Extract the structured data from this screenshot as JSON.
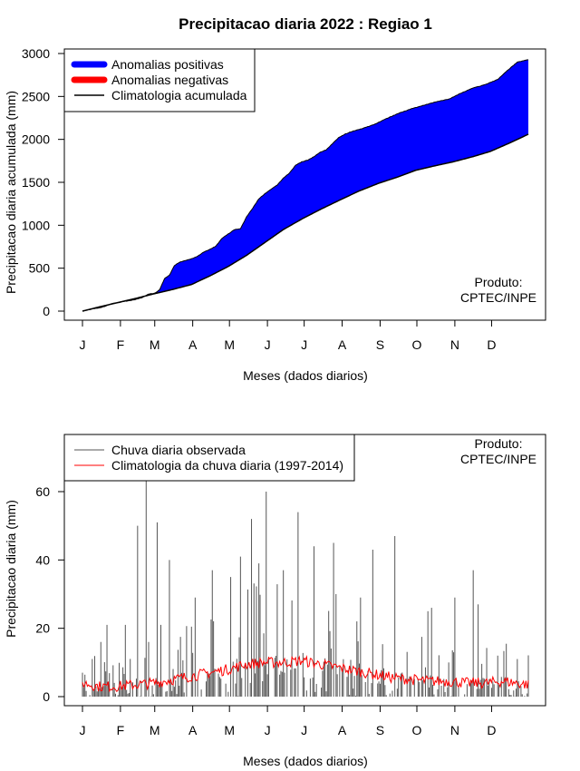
{
  "title": "Precipitacao diaria 2022 : Regiao 1",
  "product_label": [
    "Produto:",
    "CPTEC/INPE"
  ],
  "chart_data": [
    {
      "type": "area",
      "name": "accumulated",
      "ylabel": "Precipitacao diaria acumulada (mm)",
      "xlabel": "Meses (dados diarios)",
      "month_ticks": [
        "J",
        "F",
        "M",
        "A",
        "M",
        "J",
        "J",
        "A",
        "S",
        "O",
        "N",
        "D"
      ],
      "xlim": [
        1,
        365
      ],
      "ylim": [
        0,
        3000
      ],
      "yticks": [
        0,
        500,
        1000,
        1500,
        2000,
        2500,
        3000
      ],
      "legend": {
        "position": "top-left",
        "items": [
          {
            "label": "Anomalias positivas",
            "color": "#0000ff"
          },
          {
            "label": "Anomalias negativas",
            "color": "#ff0000"
          },
          {
            "label": "Climatologia acumulada",
            "color": "#000000"
          }
        ]
      },
      "observed_anchors": {
        "day": [
          1,
          10,
          15,
          20,
          25,
          30,
          35,
          40,
          45,
          50,
          55,
          60,
          64,
          68,
          72,
          76,
          80,
          85,
          90,
          95,
          100,
          105,
          110,
          115,
          120,
          125,
          130,
          135,
          140,
          145,
          150,
          155,
          160,
          165,
          170,
          175,
          180,
          185,
          190,
          195,
          200,
          205,
          210,
          215,
          220,
          225,
          230,
          240,
          250,
          260,
          270,
          280,
          290,
          300,
          310,
          320,
          330,
          340,
          350,
          356,
          365
        ],
        "value": [
          0,
          30,
          40,
          60,
          90,
          100,
          115,
          125,
          140,
          160,
          200,
          210,
          250,
          380,
          420,
          530,
          570,
          590,
          610,
          640,
          690,
          720,
          760,
          850,
          900,
          950,
          960,
          1100,
          1200,
          1310,
          1370,
          1420,
          1470,
          1550,
          1610,
          1700,
          1740,
          1760,
          1800,
          1850,
          1880,
          1950,
          2020,
          2060,
          2090,
          2110,
          2130,
          2180,
          2250,
          2310,
          2360,
          2400,
          2440,
          2470,
          2540,
          2600,
          2640,
          2700,
          2830,
          2900,
          2930
        ]
      },
      "climatology_anchors": {
        "day": [
          1,
          15,
          30,
          45,
          59,
          74,
          90,
          105,
          120,
          135,
          151,
          165,
          181,
          196,
          212,
          227,
          243,
          258,
          273,
          288,
          304,
          320,
          334,
          350,
          365
        ],
        "value": [
          0,
          50,
          100,
          150,
          200,
          250,
          310,
          410,
          520,
          650,
          810,
          950,
          1080,
          1190,
          1300,
          1400,
          1490,
          1560,
          1640,
          1690,
          1740,
          1800,
          1860,
          1960,
          2060
        ]
      }
    },
    {
      "type": "bar",
      "name": "daily",
      "ylabel": "Precipitacao diaria (mm)",
      "xlabel": "Meses (dados diarios)",
      "month_ticks": [
        "J",
        "F",
        "M",
        "A",
        "M",
        "J",
        "J",
        "A",
        "S",
        "O",
        "N",
        "D"
      ],
      "xlim": [
        1,
        365
      ],
      "ylim": [
        0,
        75
      ],
      "yticks": [
        0,
        20,
        40,
        60
      ],
      "legend": {
        "position": "top-left",
        "items": [
          {
            "label": "Chuva diaria observada",
            "color": "#555555"
          },
          {
            "label": "Climatologia da chuva diaria (1997-2014)",
            "color": "#ff0000"
          }
        ]
      },
      "observed_peaks": [
        {
          "day": 1,
          "value": 7
        },
        {
          "day": 16,
          "value": 16
        },
        {
          "day": 21,
          "value": 21
        },
        {
          "day": 36,
          "value": 21
        },
        {
          "day": 46,
          "value": 50
        },
        {
          "day": 53,
          "value": 64
        },
        {
          "day": 55,
          "value": 16
        },
        {
          "day": 62,
          "value": 51
        },
        {
          "day": 65,
          "value": 21
        },
        {
          "day": 72,
          "value": 40
        },
        {
          "day": 93,
          "value": 29
        },
        {
          "day": 107,
          "value": 37
        },
        {
          "day": 122,
          "value": 35
        },
        {
          "day": 130,
          "value": 41
        },
        {
          "day": 139,
          "value": 52
        },
        {
          "day": 145,
          "value": 39
        },
        {
          "day": 151,
          "value": 60
        },
        {
          "day": 165,
          "value": 37
        },
        {
          "day": 177,
          "value": 54
        },
        {
          "day": 190,
          "value": 44
        },
        {
          "day": 206,
          "value": 45
        },
        {
          "day": 228,
          "value": 29
        },
        {
          "day": 238,
          "value": 43
        },
        {
          "day": 256,
          "value": 47
        },
        {
          "day": 283,
          "value": 25
        },
        {
          "day": 286,
          "value": 26
        },
        {
          "day": 300,
          "value": 10
        },
        {
          "day": 305,
          "value": 29
        },
        {
          "day": 320,
          "value": 37
        },
        {
          "day": 324,
          "value": 27
        },
        {
          "day": 340,
          "value": 12
        },
        {
          "day": 356,
          "value": 11
        }
      ],
      "climatology_anchors": {
        "day": [
          1,
          15,
          30,
          45,
          60,
          75,
          90,
          105,
          120,
          135,
          150,
          165,
          180,
          195,
          210,
          225,
          240,
          255,
          270,
          285,
          300,
          315,
          330,
          345,
          365
        ],
        "value": [
          4,
          3,
          3,
          3.5,
          4,
          5,
          6,
          7,
          8,
          9.5,
          10,
          10,
          10.5,
          9.5,
          8.5,
          7.5,
          6.5,
          5.5,
          5,
          4.5,
          4.5,
          4,
          4,
          4.5,
          3.5
        ]
      }
    }
  ]
}
